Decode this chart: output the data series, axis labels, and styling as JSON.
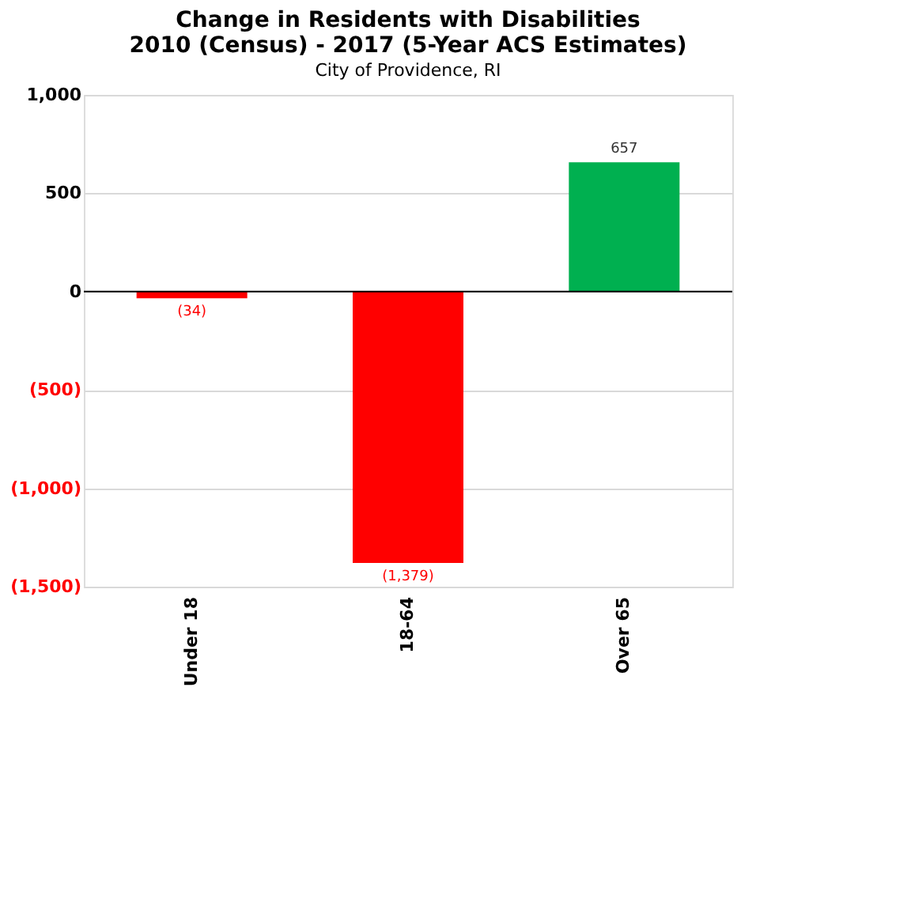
{
  "chart_data": {
    "type": "bar",
    "title": "Change in Residents with Disabilities\n2010 (Census) - 2017 (5-Year ACS Estimates)",
    "subtitle": "City of Providence, RI",
    "categories": [
      "Under 18",
      "18-64",
      "Over 65"
    ],
    "values": [
      -34,
      -1379,
      657
    ],
    "colors": [
      "#ff0000",
      "#ff0000",
      "#00b050"
    ],
    "value_labels": [
      "(34)",
      "(1,379)",
      "657"
    ],
    "ylim": [
      -1500,
      1000
    ],
    "yticks": [
      {
        "value": -1500,
        "label": "(1,500)"
      },
      {
        "value": -1000,
        "label": "(1,000)"
      },
      {
        "value": -500,
        "label": "(500)"
      },
      0,
      500,
      {
        "value": 1000,
        "label": "1,000"
      }
    ],
    "grid": "y"
  }
}
